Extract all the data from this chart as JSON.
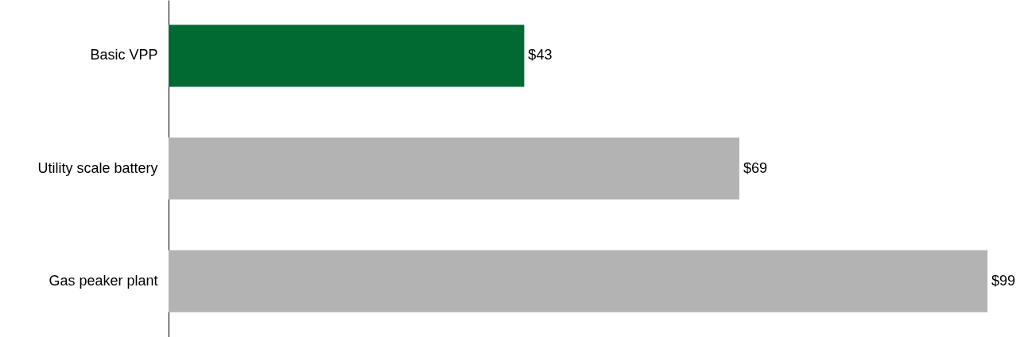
{
  "chart_data": {
    "type": "bar",
    "orientation": "horizontal",
    "categories": [
      "Basic VPP",
      "Utility scale battery",
      "Gas peaker plant"
    ],
    "values": [
      43,
      69,
      99
    ],
    "colors": [
      "#006a32",
      "#b3b3b3",
      "#b3b3b3"
    ],
    "value_labels": [
      "$43",
      "$69",
      "$99"
    ]
  }
}
